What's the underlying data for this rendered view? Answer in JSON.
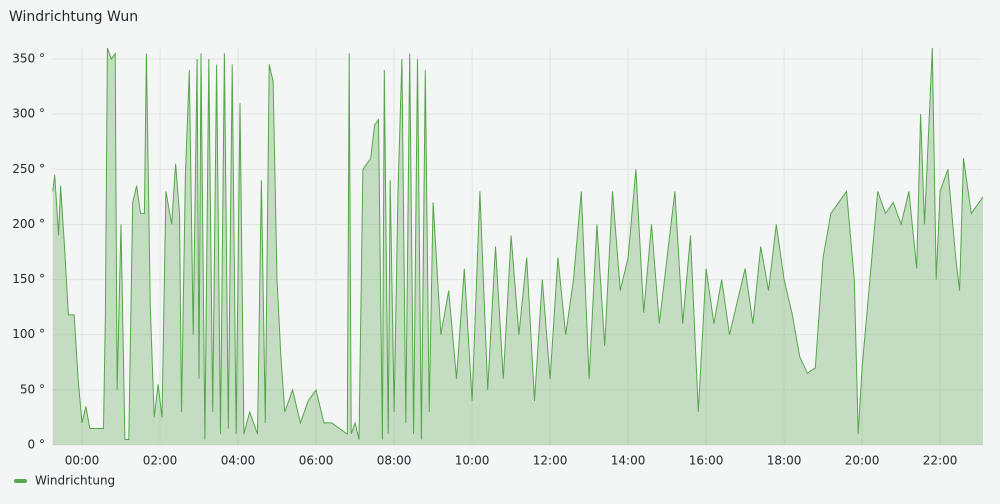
{
  "chart_data": {
    "type": "line",
    "title": "Windrichtung Wun",
    "x": [
      -0.75,
      -0.7,
      -0.6,
      -0.55,
      -0.45,
      -0.35,
      -0.2,
      -0.1,
      0,
      0.1,
      0.2,
      0.5,
      0.55,
      0.6,
      0.65,
      0.75,
      0.85,
      0.9,
      1.0,
      1.1,
      1.2,
      1.3,
      1.4,
      1.5,
      1.6,
      1.65,
      1.75,
      1.85,
      1.95,
      2.05,
      2.15,
      2.3,
      2.4,
      2.5,
      2.55,
      2.65,
      2.75,
      2.85,
      2.95,
      3.0,
      3.05,
      3.15,
      3.25,
      3.35,
      3.45,
      3.55,
      3.65,
      3.75,
      3.85,
      3.95,
      4.05,
      4.15,
      4.3,
      4.5,
      4.6,
      4.7,
      4.8,
      4.9,
      5.0,
      5.1,
      5.2,
      5.4,
      5.6,
      5.8,
      6.0,
      6.2,
      6.4,
      6.6,
      6.8,
      6.85,
      6.9,
      7.0,
      7.1,
      7.2,
      7.4,
      7.5,
      7.6,
      7.7,
      7.75,
      7.85,
      7.9,
      8.0,
      8.1,
      8.2,
      8.3,
      8.4,
      8.5,
      8.6,
      8.7,
      8.8,
      8.9,
      9.0,
      9.2,
      9.4,
      9.6,
      9.8,
      10.0,
      10.2,
      10.4,
      10.6,
      10.8,
      11.0,
      11.2,
      11.4,
      11.6,
      11.8,
      12.0,
      12.2,
      12.4,
      12.6,
      12.8,
      13.0,
      13.2,
      13.4,
      13.6,
      13.8,
      14.0,
      14.2,
      14.4,
      14.6,
      14.8,
      15.0,
      15.2,
      15.4,
      15.6,
      15.8,
      16.0,
      16.2,
      16.4,
      16.6,
      16.8,
      17.0,
      17.2,
      17.4,
      17.6,
      17.8,
      18.0,
      18.2,
      18.4,
      18.6,
      18.8,
      19.0,
      19.2,
      19.4,
      19.6,
      19.8,
      19.9,
      20.0,
      20.2,
      20.4,
      20.6,
      20.8,
      21.0,
      21.2,
      21.4,
      21.5,
      21.6,
      21.8,
      21.9,
      22.0,
      22.2,
      22.4,
      22.5,
      22.6,
      22.8,
      23.0,
      23.1
    ],
    "series": [
      {
        "name": "Windrichtung",
        "color": "#56a64b",
        "values": [
          230,
          245,
          190,
          235,
          180,
          118,
          118,
          60,
          20,
          35,
          15,
          15,
          15,
          120,
          360,
          350,
          355,
          50,
          200,
          5,
          5,
          220,
          235,
          210,
          210,
          355,
          125,
          25,
          55,
          25,
          230,
          200,
          255,
          210,
          30,
          245,
          340,
          100,
          350,
          60,
          355,
          5,
          350,
          30,
          345,
          10,
          355,
          15,
          345,
          10,
          310,
          10,
          30,
          10,
          240,
          20,
          345,
          330,
          150,
          80,
          30,
          50,
          20,
          40,
          50,
          20,
          20,
          15,
          10,
          355,
          10,
          20,
          5,
          250,
          260,
          290,
          295,
          5,
          340,
          10,
          240,
          30,
          230,
          350,
          20,
          355,
          10,
          350,
          5,
          340,
          30,
          220,
          100,
          140,
          60,
          160,
          40,
          230,
          50,
          180,
          60,
          190,
          100,
          170,
          40,
          150,
          60,
          170,
          100,
          150,
          230,
          60,
          200,
          90,
          230,
          140,
          170,
          250,
          120,
          200,
          110,
          170,
          230,
          110,
          190,
          30,
          160,
          110,
          150,
          100,
          130,
          160,
          110,
          180,
          140,
          200,
          150,
          120,
          80,
          65,
          70,
          170,
          210,
          220,
          230,
          150,
          10,
          70,
          150,
          230,
          210,
          220,
          200,
          230,
          160,
          300,
          200,
          360,
          150,
          230,
          250,
          170,
          140,
          260,
          210,
          220,
          225
        ]
      }
    ],
    "xlim": [
      -0.77,
      23.1
    ],
    "xticks": [
      {
        "value": 0,
        "label": "00:00"
      },
      {
        "value": 2,
        "label": "02:00"
      },
      {
        "value": 4,
        "label": "04:00"
      },
      {
        "value": 6,
        "label": "06:00"
      },
      {
        "value": 8,
        "label": "08:00"
      },
      {
        "value": 10,
        "label": "10:00"
      },
      {
        "value": 12,
        "label": "12:00"
      },
      {
        "value": 14,
        "label": "14:00"
      },
      {
        "value": 16,
        "label": "16:00"
      },
      {
        "value": 18,
        "label": "18:00"
      },
      {
        "value": 20,
        "label": "20:00"
      },
      {
        "value": 22,
        "label": "22:00"
      }
    ],
    "ylim": [
      0,
      360
    ],
    "yticks": [
      {
        "value": 0,
        "label": "0 °"
      },
      {
        "value": 50,
        "label": "50 °"
      },
      {
        "value": 100,
        "label": "100 °"
      },
      {
        "value": 150,
        "label": "150 °"
      },
      {
        "value": 200,
        "label": "200 °"
      },
      {
        "value": 250,
        "label": "250 °"
      },
      {
        "value": 300,
        "label": "300 °"
      },
      {
        "value": 350,
        "label": "350 °"
      }
    ],
    "grid": true,
    "legend": "bottom-left"
  }
}
